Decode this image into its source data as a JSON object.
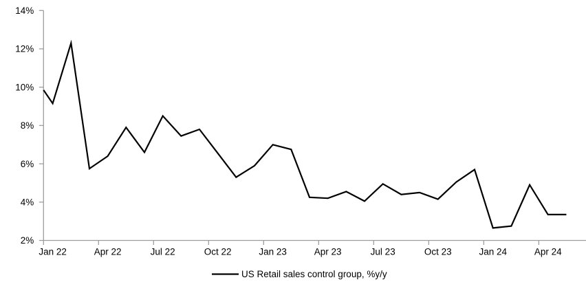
{
  "figure": {
    "background": "#ffffff"
  },
  "colors": {
    "axis": "#9d9d9d",
    "series_line": "#000000",
    "text": "#000000"
  },
  "legend": {
    "label": "US Retail sales control group, %y/y"
  },
  "chart_data": {
    "type": "line",
    "title": "",
    "xlabel": "",
    "ylabel": "",
    "grid": false,
    "legend_position": "bottom-center",
    "y_axis": {
      "min": 2,
      "max": 14,
      "step": 2,
      "tick_labels": [
        "2%",
        "4%",
        "6%",
        "8%",
        "10%",
        "12%",
        "14%"
      ],
      "format": "percent"
    },
    "x_axis": {
      "tick_labels": [
        "Jan 22",
        "Apr 22",
        "Jul 22",
        "Oct 22",
        "Jan 23",
        "Apr 23",
        "Jul 23",
        "Oct 23",
        "Jan 24",
        "Apr 24"
      ],
      "months_per_tick": 3
    },
    "series": [
      {
        "name": "US Retail sales control group, %y/y",
        "color": "#000000",
        "edge_start_value": 9.85,
        "categories": [
          "Jan 22",
          "Feb 22",
          "Mar 22",
          "Apr 22",
          "May 22",
          "Jun 22",
          "Jul 22",
          "Aug 22",
          "Sep 22",
          "Oct 22",
          "Nov 22",
          "Dec 22",
          "Jan 23",
          "Feb 23",
          "Mar 23",
          "Apr 23",
          "May 23",
          "Jun 23",
          "Jul 23",
          "Aug 23",
          "Sep 23",
          "Oct 23",
          "Nov 23",
          "Dec 23",
          "Jan 24",
          "Feb 24",
          "Mar 24",
          "Apr 24",
          "May 24"
        ],
        "values": [
          9.15,
          12.3,
          5.75,
          6.4,
          7.9,
          6.6,
          8.5,
          7.45,
          7.8,
          6.55,
          5.3,
          5.9,
          7.0,
          6.75,
          4.25,
          4.2,
          4.55,
          4.05,
          4.95,
          4.4,
          4.5,
          4.15,
          5.05,
          5.7,
          2.65,
          2.75,
          4.9,
          3.35,
          3.35
        ]
      }
    ],
    "ylim": [
      2,
      14
    ]
  }
}
